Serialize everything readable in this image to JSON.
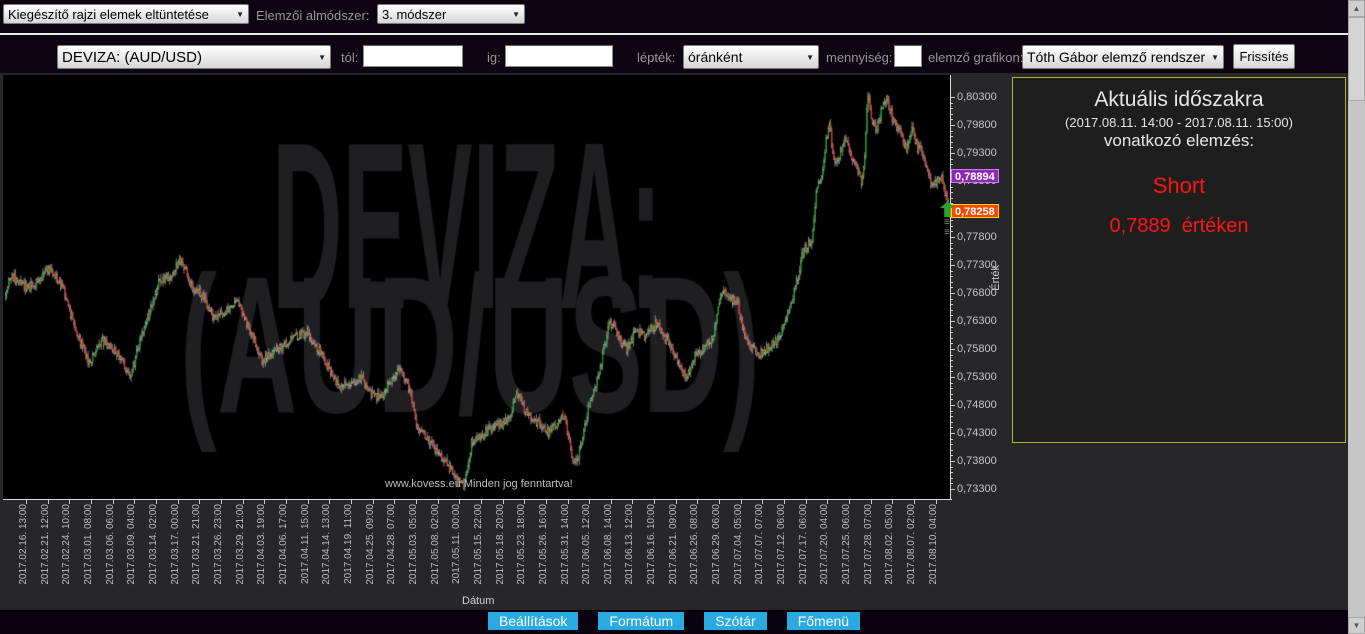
{
  "toolbar_top": {
    "draw_elements_select": "Kiegészítő rajzi elemek eltüntetése",
    "submethod_label": "Elemzői almódszer:",
    "submethod_select": "3. módszer"
  },
  "toolbar_chart": {
    "pair_select": "DEVIZA: (AUD/USD)",
    "from_label": "tól:",
    "from_value": "",
    "to_label": "ig:",
    "to_value": "",
    "scale_label": "lépték:",
    "scale_select": "óránként",
    "quantity_label": "mennyiség:",
    "quantity_value": "",
    "analyzer_label": "elemző grafikon:",
    "analyzer_select": "Tóth Gábor elemző rendszer",
    "refresh_button": "Frissítés"
  },
  "analysis_panel": {
    "title": "Aktuális időszakra",
    "period": "(2017.08.11. 14:00 - 2017.08.11. 15:00)",
    "subtitle": "vonatkozó elemzés:",
    "signal": "Short",
    "price_text": "0,7889  értéken",
    "signal_color": "#ff1414"
  },
  "footer": {
    "buttons": [
      "Beállítások",
      "Formátum",
      "Szótár",
      "Főmenü"
    ],
    "button_color": "#29abe2"
  },
  "chart_data": {
    "type": "candlestick",
    "watermark_line1": "DEVIZA:",
    "watermark_line2": "(AUD/USD)",
    "copyright": "www.kovess.eu Minden jog fenntartva!",
    "xlabel": "Dátum",
    "ylabel": "Érték",
    "ylim": [
      0.7312,
      0.8069
    ],
    "y_tick_step": 0.005,
    "y_ticks_top": 0.803,
    "y_tick_labels": [
      "0,80300",
      "0,79800",
      "0,79300",
      "0,78800",
      "0,78300",
      "0,77800",
      "0,77300",
      "0,76800",
      "0,76300",
      "0,75800",
      "0,75300",
      "0,74800",
      "0,74300",
      "0,73800",
      "0,73300"
    ],
    "x_tick_labels": [
      "2017.02.16. 13:00",
      "2017.02.21. 12:00",
      "2017.02.24. 10:00",
      "2017.03.01. 08:00",
      "2017.03.06. 06:00",
      "2017.03.09. 04:00",
      "2017.03.14. 02:00",
      "2017.03.17. 00:00",
      "2017.03.21. 21:00",
      "2017.03.26. 23:00",
      "2017.03.29. 21:00",
      "2017.04.03. 19:00",
      "2017.04.06. 17:00",
      "2017.04.11. 15:00",
      "2017.04.14. 13:00",
      "2017.04.19. 11:00",
      "2017.04.25. 09:00",
      "2017.04.28. 07:00",
      "2017.05.03. 05:00",
      "2017.05.08. 02:00",
      "2017.05.11. 00:00",
      "2017.05.15. 22:00",
      "2017.05.18. 20:00",
      "2017.05.23. 18:00",
      "2017.05.26. 16:00",
      "2017.05.31. 14:00",
      "2017.06.05. 12:00",
      "2017.06.08. 14:00",
      "2017.06.13. 12:00",
      "2017.06.16. 10:00",
      "2017.06.21. 09:00",
      "2017.06.26. 08:00",
      "2017.06.29. 06:00",
      "2017.07.04. 05:00",
      "2017.07.07. 07:00",
      "2017.07.12. 06:00",
      "2017.07.17. 06:00",
      "2017.07.20. 04:00",
      "2017.07.25. 06:00",
      "2017.07.28. 07:00",
      "2017.08.02. 05:00",
      "2017.08.07. 02:00",
      "2017.08.10. 04:00"
    ],
    "price_markers": [
      {
        "value": 0.78894,
        "label": "0,78894",
        "color": "purple"
      },
      {
        "value": 0.78258,
        "label": "0,78258",
        "color": "orange"
      }
    ],
    "last_price": 0.78258,
    "up_color": "#1c9c24",
    "down_color": "#df3326",
    "wick_color": "#cfcfcf",
    "watermark_color": "#1f1f22",
    "price_path": [
      [
        5,
        0.7668
      ],
      [
        10,
        0.7712
      ],
      [
        28,
        0.7688
      ],
      [
        40,
        0.7703
      ],
      [
        50,
        0.7725
      ],
      [
        63,
        0.769
      ],
      [
        78,
        0.7605
      ],
      [
        90,
        0.7556
      ],
      [
        103,
        0.7594
      ],
      [
        118,
        0.7576
      ],
      [
        130,
        0.7528
      ],
      [
        145,
        0.7618
      ],
      [
        160,
        0.7703
      ],
      [
        172,
        0.7712
      ],
      [
        182,
        0.7742
      ],
      [
        192,
        0.7692
      ],
      [
        205,
        0.7672
      ],
      [
        215,
        0.7633
      ],
      [
        228,
        0.7651
      ],
      [
        237,
        0.7668
      ],
      [
        250,
        0.7617
      ],
      [
        262,
        0.7561
      ],
      [
        272,
        0.7568
      ],
      [
        285,
        0.7589
      ],
      [
        298,
        0.7602
      ],
      [
        308,
        0.7611
      ],
      [
        320,
        0.7578
      ],
      [
        332,
        0.7538
      ],
      [
        340,
        0.7508
      ],
      [
        352,
        0.7523
      ],
      [
        362,
        0.7528
      ],
      [
        372,
        0.7502
      ],
      [
        380,
        0.7492
      ],
      [
        392,
        0.7522
      ],
      [
        400,
        0.7543
      ],
      [
        408,
        0.7523
      ],
      [
        418,
        0.7437
      ],
      [
        428,
        0.7419
      ],
      [
        440,
        0.7392
      ],
      [
        450,
        0.7367
      ],
      [
        458,
        0.7344
      ],
      [
        465,
        0.7337
      ],
      [
        472,
        0.7412
      ],
      [
        480,
        0.7422
      ],
      [
        490,
        0.7438
      ],
      [
        500,
        0.7446
      ],
      [
        510,
        0.7455
      ],
      [
        518,
        0.7501
      ],
      [
        528,
        0.7462
      ],
      [
        540,
        0.7449
      ],
      [
        550,
        0.7431
      ],
      [
        560,
        0.7453
      ],
      [
        565,
        0.7462
      ],
      [
        572,
        0.7394
      ],
      [
        577,
        0.7371
      ],
      [
        583,
        0.7425
      ],
      [
        590,
        0.7484
      ],
      [
        598,
        0.7523
      ],
      [
        605,
        0.7582
      ],
      [
        610,
        0.7626
      ],
      [
        618,
        0.7607
      ],
      [
        627,
        0.7578
      ],
      [
        637,
        0.7614
      ],
      [
        645,
        0.7601
      ],
      [
        652,
        0.7617
      ],
      [
        657,
        0.7626
      ],
      [
        665,
        0.7607
      ],
      [
        673,
        0.7578
      ],
      [
        683,
        0.7537
      ],
      [
        688,
        0.7531
      ],
      [
        695,
        0.7568
      ],
      [
        705,
        0.7581
      ],
      [
        713,
        0.7602
      ],
      [
        723,
        0.7682
      ],
      [
        730,
        0.7671
      ],
      [
        738,
        0.7664
      ],
      [
        745,
        0.7601
      ],
      [
        752,
        0.7585
      ],
      [
        760,
        0.757
      ],
      [
        770,
        0.7585
      ],
      [
        778,
        0.7595
      ],
      [
        787,
        0.7635
      ],
      [
        795,
        0.7682
      ],
      [
        802,
        0.7742
      ],
      [
        808,
        0.7768
      ],
      [
        813,
        0.7775
      ],
      [
        817,
        0.7872
      ],
      [
        822,
        0.789
      ],
      [
        827,
        0.7955
      ],
      [
        830,
        0.798
      ],
      [
        835,
        0.7915
      ],
      [
        840,
        0.7928
      ],
      [
        847,
        0.796
      ],
      [
        853,
        0.792
      ],
      [
        858,
        0.7898
      ],
      [
        863,
        0.7878
      ],
      [
        866,
        0.794
      ],
      [
        868,
        0.804
      ],
      [
        872,
        0.7995
      ],
      [
        877,
        0.7968
      ],
      [
        882,
        0.8005
      ],
      [
        887,
        0.8032
      ],
      [
        893,
        0.7993
      ],
      [
        898,
        0.797
      ],
      [
        903,
        0.7966
      ],
      [
        907,
        0.7932
      ],
      [
        913,
        0.7973
      ],
      [
        918,
        0.7942
      ],
      [
        923,
        0.7931
      ],
      [
        927,
        0.7903
      ],
      [
        933,
        0.7868
      ],
      [
        938,
        0.7885
      ],
      [
        942,
        0.789
      ],
      [
        946,
        0.7858
      ],
      [
        949,
        0.78258
      ]
    ]
  }
}
